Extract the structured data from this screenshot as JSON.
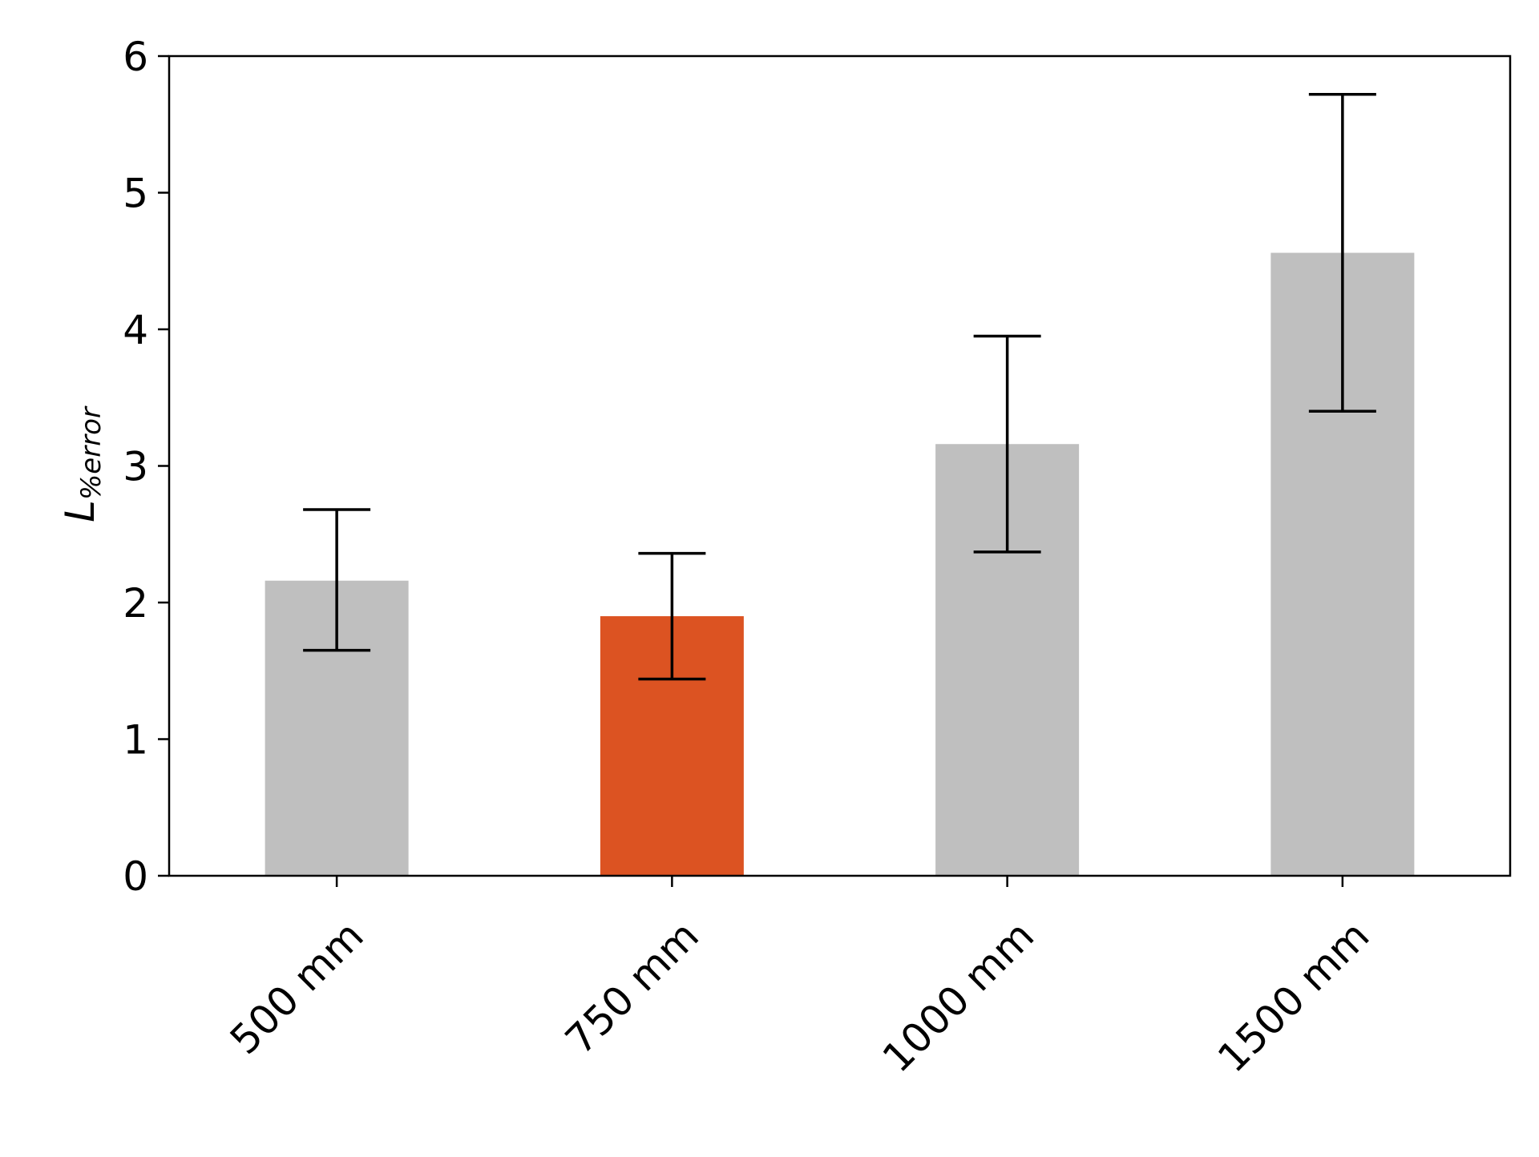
{
  "chart_data": {
    "type": "bar",
    "title": "",
    "xlabel": "",
    "ylabel": {
      "main": "L",
      "sub": "%error"
    },
    "categories": [
      "500 mm",
      "750 mm",
      "1000 mm",
      "1500 mm"
    ],
    "values": [
      2.16,
      1.9,
      3.16,
      4.56
    ],
    "error_low": [
      1.65,
      1.44,
      2.37,
      3.4
    ],
    "error_high": [
      2.68,
      2.36,
      3.95,
      5.72
    ],
    "colors": [
      "#bfbfbf",
      "#dc5322",
      "#bfbfbf",
      "#bfbfbf"
    ],
    "highlight_color": "#dc5322",
    "default_color": "#bfbfbf",
    "error_color": "#000000",
    "ylim": [
      0,
      6
    ],
    "yticks": [
      "0",
      "1",
      "2",
      "3",
      "4",
      "5",
      "6"
    ],
    "grid": false,
    "legend": false
  }
}
